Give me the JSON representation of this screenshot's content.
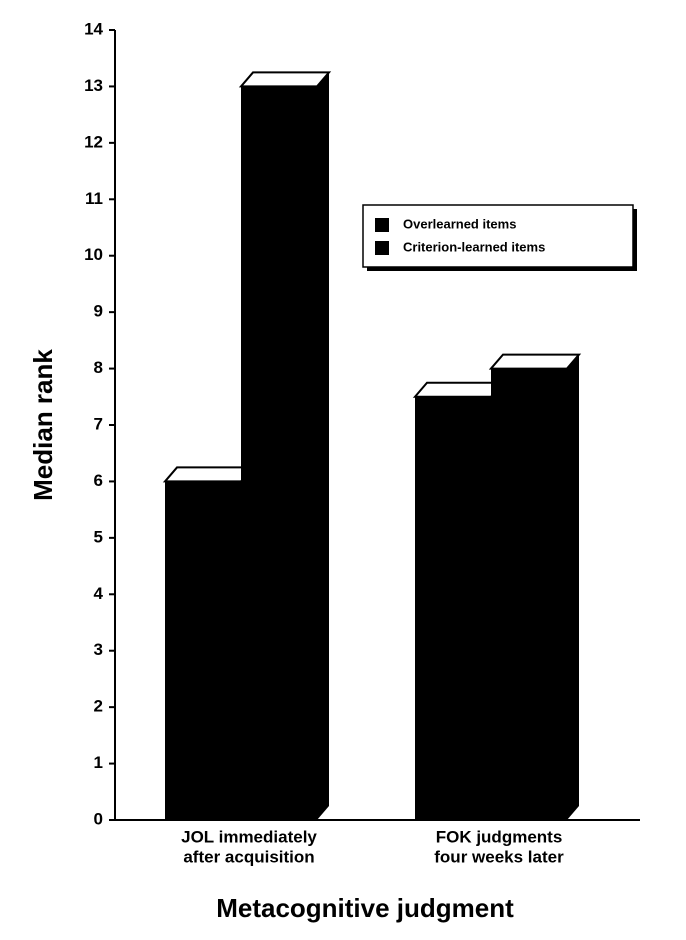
{
  "chart_data": {
    "type": "bar3d",
    "y_label": "Median rank",
    "x_label": "Metacognitive judgment",
    "categories": [
      [
        "JOL immediately",
        "after acquisition"
      ],
      [
        "FOK judgments",
        "four weeks later"
      ]
    ],
    "series": [
      {
        "name": "Overlearned items",
        "color": "#000000",
        "values": [
          6,
          7.5
        ]
      },
      {
        "name": "Criterion-learned items",
        "color": "#000000",
        "values": [
          13,
          8
        ]
      }
    ],
    "ylim": [
      0,
      14
    ],
    "yticks": [
      0,
      1,
      2,
      3,
      4,
      5,
      6,
      7,
      8,
      9,
      10,
      11,
      12,
      13,
      14
    ],
    "legend": "upper right"
  }
}
